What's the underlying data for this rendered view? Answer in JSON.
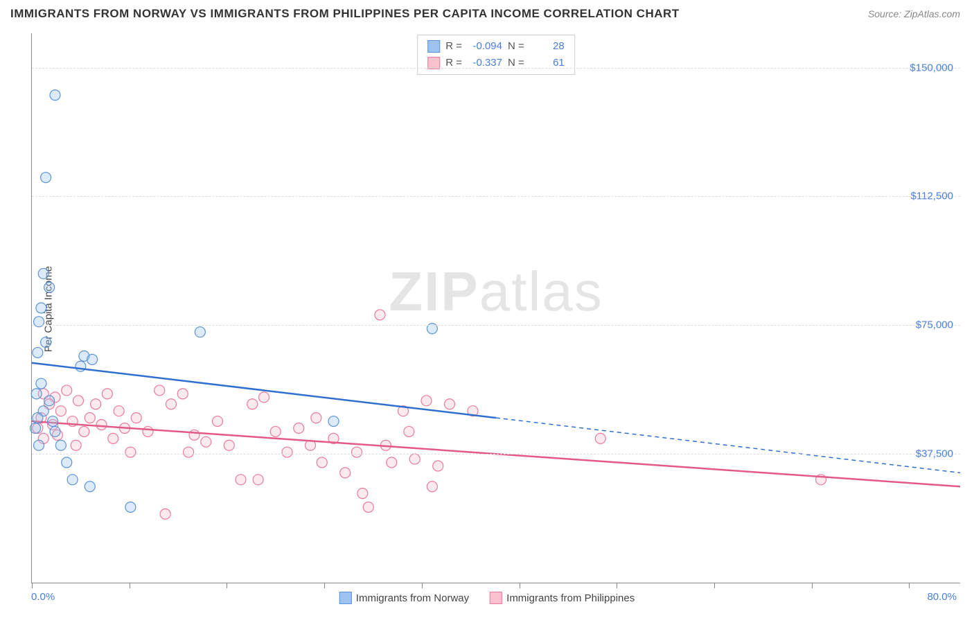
{
  "header": {
    "title": "IMMIGRANTS FROM NORWAY VS IMMIGRANTS FROM PHILIPPINES PER CAPITA INCOME CORRELATION CHART",
    "source_prefix": "Source: ",
    "source": "ZipAtlas.com"
  },
  "chart": {
    "type": "scatter",
    "ylabel": "Per Capita Income",
    "xlim": [
      0,
      80
    ],
    "ylim": [
      0,
      160000
    ],
    "xlabel_min": "0.0%",
    "xlabel_max": "80.0%",
    "yticks": [
      {
        "v": 37500,
        "label": "$37,500"
      },
      {
        "v": 75000,
        "label": "$75,000"
      },
      {
        "v": 112500,
        "label": "$112,500"
      },
      {
        "v": 150000,
        "label": "$150,000"
      }
    ],
    "xticks_pct": [
      0,
      8.4,
      16.8,
      25.2,
      33.6,
      42.0,
      50.4,
      58.8,
      67.2,
      75.6
    ],
    "grid_color": "#dddddd",
    "background_color": "#ffffff",
    "marker_radius": 7.5,
    "watermark": "ZIPatlas"
  },
  "series": {
    "norway": {
      "label": "Immigrants from Norway",
      "color_fill": "#9dc3f0",
      "color_stroke": "#5b93d6",
      "line_color": "#2f6fd0",
      "R": "-0.094",
      "N": "28",
      "trend": {
        "x1": 0,
        "y1": 64000,
        "x2": 80,
        "y2": 32000,
        "solid_until_x": 40
      },
      "points": [
        {
          "x": 2.0,
          "y": 142000
        },
        {
          "x": 1.2,
          "y": 118000
        },
        {
          "x": 1.0,
          "y": 90000
        },
        {
          "x": 1.5,
          "y": 86000
        },
        {
          "x": 0.8,
          "y": 80000
        },
        {
          "x": 0.6,
          "y": 76000
        },
        {
          "x": 1.2,
          "y": 70000
        },
        {
          "x": 0.5,
          "y": 67000
        },
        {
          "x": 4.5,
          "y": 66000
        },
        {
          "x": 5.2,
          "y": 65000
        },
        {
          "x": 4.2,
          "y": 63000
        },
        {
          "x": 0.8,
          "y": 58000
        },
        {
          "x": 0.4,
          "y": 55000
        },
        {
          "x": 1.0,
          "y": 50000
        },
        {
          "x": 0.5,
          "y": 48000
        },
        {
          "x": 1.8,
          "y": 47000
        },
        {
          "x": 0.3,
          "y": 45000
        },
        {
          "x": 2.5,
          "y": 40000
        },
        {
          "x": 0.6,
          "y": 40000
        },
        {
          "x": 3.0,
          "y": 35000
        },
        {
          "x": 3.5,
          "y": 30000
        },
        {
          "x": 5.0,
          "y": 28000
        },
        {
          "x": 8.5,
          "y": 22000
        },
        {
          "x": 14.5,
          "y": 73000
        },
        {
          "x": 26.0,
          "y": 47000
        },
        {
          "x": 34.5,
          "y": 74000
        },
        {
          "x": 2.0,
          "y": 44000
        },
        {
          "x": 1.5,
          "y": 53000
        }
      ]
    },
    "philippines": {
      "label": "Immigrants from Philippines",
      "color_fill": "#f8c2cf",
      "color_stroke": "#e97a9b",
      "line_color": "#e35a85",
      "R": "-0.337",
      "N": "61",
      "trend": {
        "x1": 0,
        "y1": 47000,
        "x2": 80,
        "y2": 28000,
        "solid_until_x": 80
      },
      "points": [
        {
          "x": 1.0,
          "y": 55000
        },
        {
          "x": 2.0,
          "y": 54000
        },
        {
          "x": 3.0,
          "y": 56000
        },
        {
          "x": 1.5,
          "y": 52000
        },
        {
          "x": 2.5,
          "y": 50000
        },
        {
          "x": 4.0,
          "y": 53000
        },
        {
          "x": 0.8,
          "y": 48000
        },
        {
          "x": 1.8,
          "y": 46000
        },
        {
          "x": 3.5,
          "y": 47000
        },
        {
          "x": 5.0,
          "y": 48000
        },
        {
          "x": 6.0,
          "y": 46000
        },
        {
          "x": 7.5,
          "y": 50000
        },
        {
          "x": 8.0,
          "y": 45000
        },
        {
          "x": 9.0,
          "y": 48000
        },
        {
          "x": 10.0,
          "y": 44000
        },
        {
          "x": 11.0,
          "y": 56000
        },
        {
          "x": 12.0,
          "y": 52000
        },
        {
          "x": 13.0,
          "y": 55000
        },
        {
          "x": 14.0,
          "y": 43000
        },
        {
          "x": 15.0,
          "y": 41000
        },
        {
          "x": 16.0,
          "y": 47000
        },
        {
          "x": 17.0,
          "y": 40000
        },
        {
          "x": 18.0,
          "y": 30000
        },
        {
          "x": 19.0,
          "y": 52000
        },
        {
          "x": 20.0,
          "y": 54000
        },
        {
          "x": 21.0,
          "y": 44000
        },
        {
          "x": 22.0,
          "y": 38000
        },
        {
          "x": 23.0,
          "y": 45000
        },
        {
          "x": 24.0,
          "y": 40000
        },
        {
          "x": 25.0,
          "y": 35000
        },
        {
          "x": 26.0,
          "y": 42000
        },
        {
          "x": 27.0,
          "y": 32000
        },
        {
          "x": 28.0,
          "y": 38000
        },
        {
          "x": 29.0,
          "y": 22000
        },
        {
          "x": 30.0,
          "y": 78000
        },
        {
          "x": 30.5,
          "y": 40000
        },
        {
          "x": 31.0,
          "y": 35000
        },
        {
          "x": 32.0,
          "y": 50000
        },
        {
          "x": 33.0,
          "y": 36000
        },
        {
          "x": 34.0,
          "y": 53000
        },
        {
          "x": 35.0,
          "y": 34000
        },
        {
          "x": 36.0,
          "y": 52000
        },
        {
          "x": 38.0,
          "y": 50000
        },
        {
          "x": 11.5,
          "y": 20000
        },
        {
          "x": 13.5,
          "y": 38000
        },
        {
          "x": 2.2,
          "y": 43000
        },
        {
          "x": 4.5,
          "y": 44000
        },
        {
          "x": 6.5,
          "y": 55000
        },
        {
          "x": 0.5,
          "y": 45000
        },
        {
          "x": 1.0,
          "y": 42000
        },
        {
          "x": 3.8,
          "y": 40000
        },
        {
          "x": 7.0,
          "y": 42000
        },
        {
          "x": 8.5,
          "y": 38000
        },
        {
          "x": 19.5,
          "y": 30000
        },
        {
          "x": 24.5,
          "y": 48000
        },
        {
          "x": 28.5,
          "y": 26000
        },
        {
          "x": 34.5,
          "y": 28000
        },
        {
          "x": 49.0,
          "y": 42000
        },
        {
          "x": 68.0,
          "y": 30000
        },
        {
          "x": 32.5,
          "y": 44000
        },
        {
          "x": 5.5,
          "y": 52000
        }
      ]
    }
  },
  "stats_labels": {
    "R": "R =",
    "N": "N ="
  }
}
